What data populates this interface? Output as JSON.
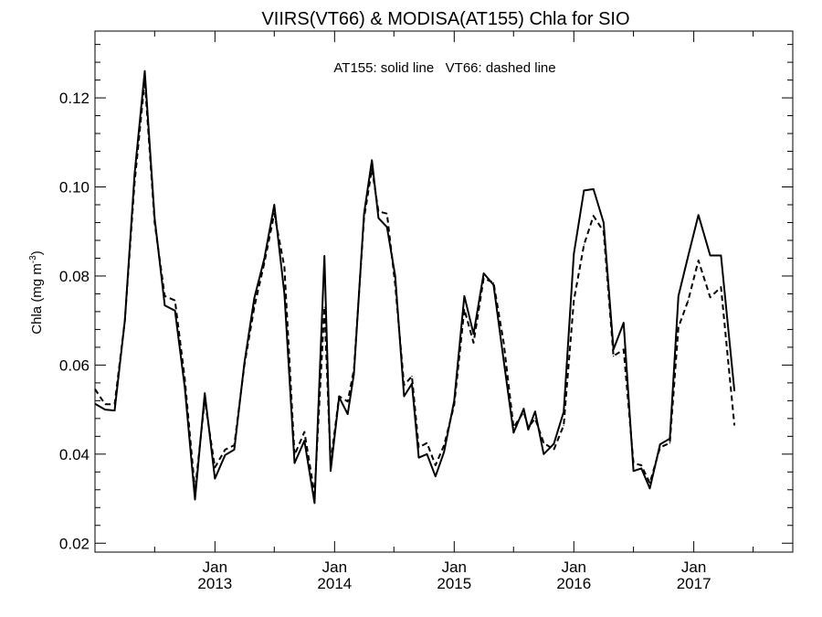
{
  "chart_data": {
    "type": "line",
    "title": "VIIRS(VT66) & MODISA(AT155)  Chla for SIO",
    "annotation": "AT155: solid line   VT66: dashed line",
    "ylabel_main": "Chla (mg m",
    "ylabel_sup": "-3",
    "ylabel_close": ")",
    "ylim": [
      0.018,
      0.135
    ],
    "yticks": [
      0.02,
      0.04,
      0.06,
      0.08,
      0.1,
      0.12
    ],
    "ytick_labels": [
      "0.02",
      "0.04",
      "0.06",
      "0.08",
      "0.10",
      "0.12"
    ],
    "xlim": [
      "2012-01-01",
      "2017-10-30"
    ],
    "xticks": [
      {
        "date": "2013-01-01",
        "month": "Jan",
        "year": "2013"
      },
      {
        "date": "2014-01-01",
        "month": "Jan",
        "year": "2014"
      },
      {
        "date": "2015-01-01",
        "month": "Jan",
        "year": "2015"
      },
      {
        "date": "2016-01-01",
        "month": "Jan",
        "year": "2016"
      },
      {
        "date": "2017-01-01",
        "month": "Jan",
        "year": "2017"
      }
    ],
    "grid": false,
    "series": [
      {
        "name": "AT155",
        "style": "solid",
        "points": [
          [
            "2012-01-01",
            0.0513
          ],
          [
            "2012-02-01",
            0.05
          ],
          [
            "2012-03-01",
            0.0498
          ],
          [
            "2012-04-01",
            0.07
          ],
          [
            "2012-05-01",
            0.103
          ],
          [
            "2012-06-01",
            0.126
          ],
          [
            "2012-07-01",
            0.093
          ],
          [
            "2012-08-01",
            0.0734
          ],
          [
            "2012-09-01",
            0.0722
          ],
          [
            "2012-10-01",
            0.055
          ],
          [
            "2012-11-01",
            0.0298
          ],
          [
            "2012-12-01",
            0.0537
          ],
          [
            "2013-01-01",
            0.0345
          ],
          [
            "2013-02-01",
            0.0398
          ],
          [
            "2013-03-01",
            0.041
          ],
          [
            "2013-04-01",
            0.0605
          ],
          [
            "2013-05-01",
            0.075
          ],
          [
            "2013-06-01",
            0.084
          ],
          [
            "2013-07-01",
            0.096
          ],
          [
            "2013-08-01",
            0.076
          ],
          [
            "2013-09-01",
            0.038
          ],
          [
            "2013-10-01",
            0.043
          ],
          [
            "2013-11-01",
            0.029
          ],
          [
            "2013-12-01",
            0.0845
          ],
          [
            "2013-12-20",
            0.0362
          ],
          [
            "2014-01-15",
            0.0528
          ],
          [
            "2014-02-10",
            0.049
          ],
          [
            "2014-03-01",
            0.058
          ],
          [
            "2014-04-01",
            0.094
          ],
          [
            "2014-04-25",
            0.106
          ],
          [
            "2014-05-15",
            0.093
          ],
          [
            "2014-06-10",
            0.091
          ],
          [
            "2014-07-05",
            0.08
          ],
          [
            "2014-08-01",
            0.053
          ],
          [
            "2014-08-25",
            0.0558
          ],
          [
            "2014-09-15",
            0.0392
          ],
          [
            "2014-10-10",
            0.04
          ],
          [
            "2014-11-05",
            0.035
          ],
          [
            "2014-12-01",
            0.0405
          ],
          [
            "2015-01-01",
            0.052
          ],
          [
            "2015-02-01",
            0.0755
          ],
          [
            "2015-03-01",
            0.067
          ],
          [
            "2015-04-01",
            0.0806
          ],
          [
            "2015-05-01",
            0.078
          ],
          [
            "2015-06-01",
            0.061
          ],
          [
            "2015-07-01",
            0.0448
          ],
          [
            "2015-08-01",
            0.0502
          ],
          [
            "2015-08-15",
            0.0455
          ],
          [
            "2015-09-05",
            0.0496
          ],
          [
            "2015-10-01",
            0.04
          ],
          [
            "2015-11-01",
            0.0423
          ],
          [
            "2015-12-01",
            0.0495
          ],
          [
            "2016-01-01",
            0.085
          ],
          [
            "2016-02-01",
            0.0992
          ],
          [
            "2016-03-01",
            0.0995
          ],
          [
            "2016-04-01",
            0.092
          ],
          [
            "2016-05-01",
            0.0635
          ],
          [
            "2016-06-01",
            0.0695
          ],
          [
            "2016-07-01",
            0.0362
          ],
          [
            "2016-07-25",
            0.0368
          ],
          [
            "2016-08-20",
            0.0323
          ],
          [
            "2016-09-20",
            0.0422
          ],
          [
            "2016-10-20",
            0.0435
          ],
          [
            "2016-11-15",
            0.0755
          ],
          [
            "2016-12-15",
            0.0845
          ],
          [
            "2017-01-15",
            0.0937
          ],
          [
            "2017-02-20",
            0.0846
          ],
          [
            "2017-03-25",
            0.0846
          ],
          [
            "2017-05-05",
            0.0542
          ]
        ]
      },
      {
        "name": "VT66",
        "style": "dashed",
        "points": [
          [
            "2012-01-01",
            0.0546
          ],
          [
            "2012-02-01",
            0.0512
          ],
          [
            "2012-03-01",
            0.0512
          ],
          [
            "2012-04-01",
            0.07
          ],
          [
            "2012-05-01",
            0.101
          ],
          [
            "2012-06-01",
            0.124
          ],
          [
            "2012-07-01",
            0.092
          ],
          [
            "2012-08-01",
            0.0755
          ],
          [
            "2012-09-01",
            0.0745
          ],
          [
            "2012-10-01",
            0.057
          ],
          [
            "2012-11-01",
            0.0318
          ],
          [
            "2012-12-01",
            0.0522
          ],
          [
            "2013-01-01",
            0.037
          ],
          [
            "2013-02-01",
            0.041
          ],
          [
            "2013-03-01",
            0.042
          ],
          [
            "2013-04-01",
            0.06
          ],
          [
            "2013-05-01",
            0.073
          ],
          [
            "2013-06-01",
            0.083
          ],
          [
            "2013-07-01",
            0.094
          ],
          [
            "2013-08-01",
            0.082
          ],
          [
            "2013-09-01",
            0.0398
          ],
          [
            "2013-10-01",
            0.045
          ],
          [
            "2013-11-01",
            0.031
          ],
          [
            "2013-12-01",
            0.073
          ],
          [
            "2013-12-20",
            0.038
          ],
          [
            "2014-01-15",
            0.053
          ],
          [
            "2014-02-10",
            0.0518
          ],
          [
            "2014-03-01",
            0.059
          ],
          [
            "2014-04-01",
            0.093
          ],
          [
            "2014-04-25",
            0.104
          ],
          [
            "2014-05-15",
            0.0945
          ],
          [
            "2014-06-10",
            0.094
          ],
          [
            "2014-07-05",
            0.078
          ],
          [
            "2014-08-01",
            0.0555
          ],
          [
            "2014-08-25",
            0.0575
          ],
          [
            "2014-09-15",
            0.0415
          ],
          [
            "2014-10-10",
            0.0425
          ],
          [
            "2014-11-05",
            0.0375
          ],
          [
            "2014-12-01",
            0.042
          ],
          [
            "2015-01-01",
            0.051
          ],
          [
            "2015-02-01",
            0.0725
          ],
          [
            "2015-03-01",
            0.065
          ],
          [
            "2015-04-01",
            0.0795
          ],
          [
            "2015-05-01",
            0.0785
          ],
          [
            "2015-06-01",
            0.065
          ],
          [
            "2015-07-01",
            0.046
          ],
          [
            "2015-08-01",
            0.0495
          ],
          [
            "2015-08-15",
            0.046
          ],
          [
            "2015-09-05",
            0.048
          ],
          [
            "2015-10-01",
            0.0425
          ],
          [
            "2015-11-01",
            0.041
          ],
          [
            "2015-12-01",
            0.0465
          ],
          [
            "2016-01-01",
            0.0745
          ],
          [
            "2016-02-01",
            0.087
          ],
          [
            "2016-03-01",
            0.0935
          ],
          [
            "2016-04-01",
            0.09
          ],
          [
            "2016-05-01",
            0.062
          ],
          [
            "2016-06-01",
            0.0635
          ],
          [
            "2016-07-01",
            0.038
          ],
          [
            "2016-07-25",
            0.0375
          ],
          [
            "2016-08-20",
            0.0335
          ],
          [
            "2016-09-20",
            0.0415
          ],
          [
            "2016-10-20",
            0.0425
          ],
          [
            "2016-11-15",
            0.0685
          ],
          [
            "2016-12-15",
            0.0745
          ],
          [
            "2017-01-15",
            0.0835
          ],
          [
            "2017-02-20",
            0.0752
          ],
          [
            "2017-03-25",
            0.0775
          ],
          [
            "2017-05-05",
            0.0465
          ]
        ]
      }
    ]
  }
}
